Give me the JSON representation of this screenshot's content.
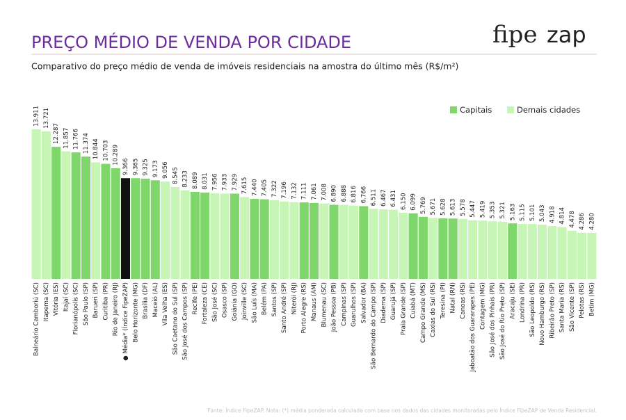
{
  "logo": {
    "fipe": "fipe",
    "zap": "zap"
  },
  "chart_data": {
    "type": "bar",
    "title": "PREÇO MÉDIO DE VENDA POR CIDADE",
    "subtitle": "Comparativo do preço médio de venda de imóveis residenciais na amostra do último mês (R$/m²)",
    "footnote": "Fonte: Índice FipeZAP. Nota: (*) média ponderada calculada com base nos dados das cidades monitoradas pelo Índice FipeZAP de Venda Residencial.",
    "legend": [
      {
        "name": "Capitais",
        "color": "#7fd66b"
      },
      {
        "name": "Demais cidades",
        "color": "#c6f5b6"
      }
    ],
    "categories": [
      "Balneário Camboriú (SC)",
      "Itapema (SC)",
      "Vitória (ES)",
      "Itajaí (SC)",
      "Florianópolis (SC)",
      "São Paulo (SP)",
      "Barueri (SP)",
      "Curitiba (PR)",
      "Rio de Janeiro (RJ)",
      "● Média* (Índice FipeZAP)",
      "Belo Horizonte (MG)",
      "Brasília (DF)",
      "Maceió (AL)",
      "Vila Velha (ES)",
      "São Caetano do Sul (SP)",
      "São José dos Campos (SP)",
      "Recife (PE)",
      "Fortaleza (CE)",
      "São José (SC)",
      "Osasco (SP)",
      "Goiânia (GO)",
      "Joinville (SC)",
      "São Luís (MA)",
      "Belém (PA)",
      "Santos (SP)",
      "Santo André (SP)",
      "Niterói (RJ)",
      "Porto Alegre (RS)",
      "Manaus (AM)",
      "Blumenau (SC)",
      "João Pessoa (PB)",
      "Campinas (SP)",
      "Guarulhos (SP)",
      "Salvador (BA)",
      "São Bernardo do Campo (SP)",
      "Diadema (SP)",
      "Guarujá (SP)",
      "Praia Grande (SP)",
      "Cuiabá (MT)",
      "Campo Grande (MS)",
      "Caxias do Sul (RS)",
      "Teresina (PI)",
      "Natal (RN)",
      "Canoas (RS)",
      "Jaboatão dos Guararapes (PE)",
      "Contagem (MG)",
      "São José dos Pinhais (PR)",
      "São José do Rio Preto (SP)",
      "Aracaju (SE)",
      "Londrina (PR)",
      "São Leopoldo (RS)",
      "Novo Hamburgo (RS)",
      "Ribeirão Preto (SP)",
      "Santa Maria (RS)",
      "São Vicente (SP)",
      "Pelotas (RS)",
      "Betim (MG)"
    ],
    "values": [
      13911,
      13721,
      12287,
      11857,
      11766,
      11374,
      10844,
      10703,
      10289,
      9366,
      9365,
      9325,
      9173,
      9056,
      8545,
      8233,
      8089,
      8031,
      7956,
      7933,
      7929,
      7615,
      7440,
      7405,
      7322,
      7196,
      7132,
      7111,
      7061,
      7008,
      6890,
      6888,
      6816,
      6766,
      6511,
      6467,
      6431,
      6150,
      6099,
      5769,
      5671,
      5628,
      5613,
      5578,
      5447,
      5419,
      5353,
      5321,
      5163,
      5115,
      5101,
      5043,
      4918,
      4814,
      4478,
      4286,
      4280
    ],
    "value_labels": [
      "13.911",
      "13.721",
      "12.287",
      "11.857",
      "11.766",
      "11.374",
      "10.844",
      "10.703",
      "10.289",
      "9.366",
      "9.365",
      "9.325",
      "9.173",
      "9.056",
      "8.545",
      "8.233",
      "8.089",
      "8.031",
      "7.956",
      "7.933",
      "7.929",
      "7.615",
      "7.440",
      "7.405",
      "7.322",
      "7.196",
      "7.132",
      "7.111",
      "7.061",
      "7.008",
      "6.890",
      "6.888",
      "6.816",
      "6.766",
      "6.511",
      "6.467",
      "6.431",
      "6.150",
      "6.099",
      "5.769",
      "5.671",
      "5.628",
      "5.613",
      "5.578",
      "5.447",
      "5.419",
      "5.353",
      "5.321",
      "5.163",
      "5.115",
      "5.101",
      "5.043",
      "4.918",
      "4.814",
      "4.478",
      "4.286",
      "4.280"
    ],
    "colors": [
      "#c6f5b6",
      "#c6f5b6",
      "#7fd66b",
      "#c6f5b6",
      "#7fd66b",
      "#7fd66b",
      "#c6f5b6",
      "#7fd66b",
      "#7fd66b",
      "#111111",
      "#7fd66b",
      "#7fd66b",
      "#7fd66b",
      "#c6f5b6",
      "#c6f5b6",
      "#c6f5b6",
      "#7fd66b",
      "#7fd66b",
      "#c6f5b6",
      "#c6f5b6",
      "#7fd66b",
      "#c6f5b6",
      "#7fd66b",
      "#7fd66b",
      "#c6f5b6",
      "#c6f5b6",
      "#c6f5b6",
      "#7fd66b",
      "#7fd66b",
      "#c6f5b6",
      "#7fd66b",
      "#c6f5b6",
      "#c6f5b6",
      "#7fd66b",
      "#c6f5b6",
      "#c6f5b6",
      "#c6f5b6",
      "#c6f5b6",
      "#7fd66b",
      "#7fd66b",
      "#c6f5b6",
      "#7fd66b",
      "#7fd66b",
      "#c6f5b6",
      "#c6f5b6",
      "#c6f5b6",
      "#c6f5b6",
      "#c6f5b6",
      "#7fd66b",
      "#c6f5b6",
      "#c6f5b6",
      "#c6f5b6",
      "#c6f5b6",
      "#c6f5b6",
      "#c6f5b6",
      "#c6f5b6",
      "#c6f5b6"
    ]
  }
}
